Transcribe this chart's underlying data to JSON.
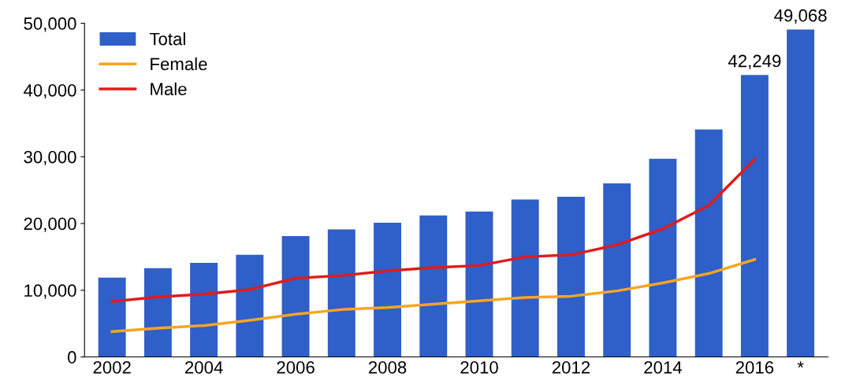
{
  "chart_data": {
    "type": "bar",
    "categories": [
      "2002",
      null,
      "2004",
      null,
      "2006",
      null,
      "2008",
      null,
      "2010",
      null,
      "2012",
      null,
      "2014",
      null,
      "2016",
      "*"
    ],
    "series": [
      {
        "name": "Total",
        "color": "#2f5fc8",
        "values": [
          11900,
          13300,
          14100,
          15300,
          18100,
          19100,
          20100,
          21200,
          21800,
          23600,
          24000,
          26000,
          29700,
          34100,
          42249,
          49068
        ],
        "value_labels": [
          null,
          null,
          null,
          null,
          null,
          null,
          null,
          null,
          null,
          null,
          null,
          null,
          null,
          null,
          "42,249",
          "49,068"
        ]
      },
      {
        "name": "Female",
        "type": "line",
        "color": "#f5a623",
        "values": [
          3800,
          4300,
          4700,
          5500,
          6400,
          7100,
          7400,
          7900,
          8400,
          8900,
          9100,
          9900,
          11100,
          12500,
          14600,
          null
        ]
      },
      {
        "name": "Male",
        "type": "line",
        "color": "#e01b1b",
        "values": [
          8300,
          9000,
          9400,
          10100,
          11800,
          12200,
          12900,
          13400,
          13700,
          15000,
          15300,
          16800,
          19200,
          22700,
          29600,
          null
        ]
      }
    ],
    "ylim": [
      0,
      50000
    ],
    "yticks": [
      {
        "value": 0,
        "label": "0"
      },
      {
        "value": 10000,
        "label": "10,000"
      },
      {
        "value": 20000,
        "label": "20,000"
      },
      {
        "value": 30000,
        "label": "30,000"
      },
      {
        "value": 40000,
        "label": "40,000"
      },
      {
        "value": 50000,
        "label": "50,000"
      }
    ],
    "grid": false,
    "legend": "top left",
    "marker": "none",
    "line_style": "solid"
  }
}
